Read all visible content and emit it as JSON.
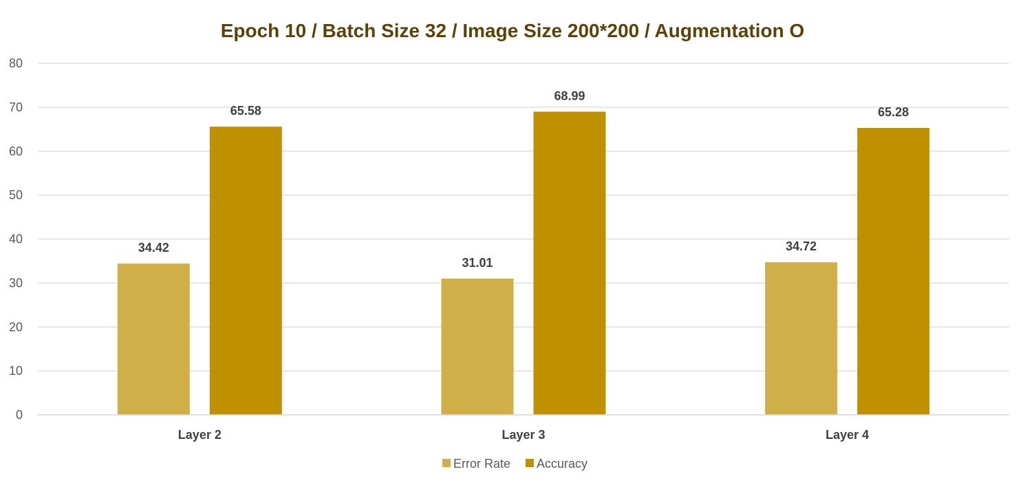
{
  "chart_data": {
    "type": "bar",
    "title": "Epoch 10 / Batch Size 32 / Image Size 200*200 / Augmentation O",
    "xlabel": "",
    "ylabel": "",
    "categories": [
      "Layer 2",
      "Layer 3",
      "Layer 4"
    ],
    "series": [
      {
        "name": "Error Rate",
        "values": [
          34.42,
          31.01,
          34.72
        ],
        "color": "#d0ae48"
      },
      {
        "name": "Accuracy",
        "values": [
          65.58,
          68.99,
          65.28
        ],
        "color": "#bf9000"
      }
    ],
    "ylim": [
      0,
      80
    ],
    "yticks": [
      0,
      10,
      20,
      30,
      40,
      50,
      60,
      70,
      80
    ],
    "grid": true,
    "legend": "bottom",
    "data_labels": true
  }
}
